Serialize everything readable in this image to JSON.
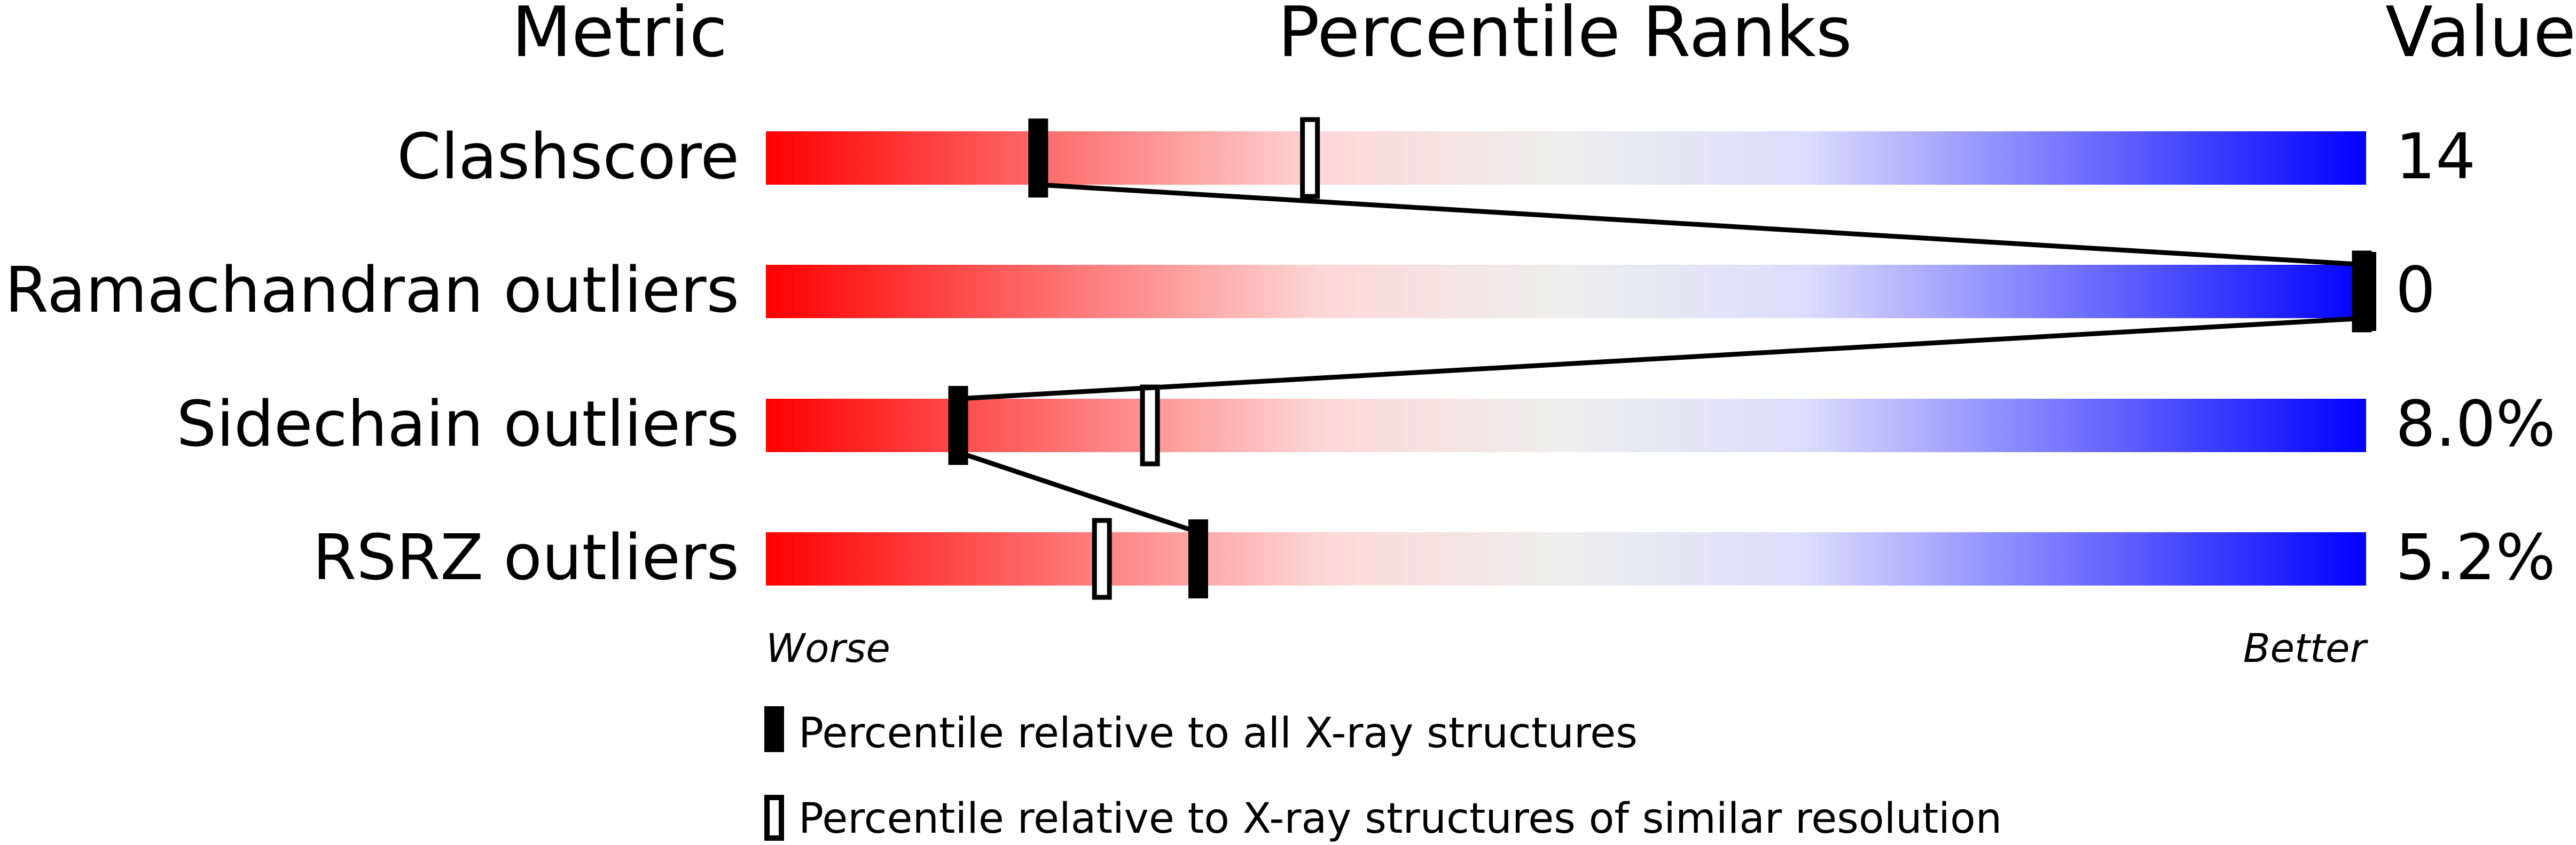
{
  "chart_data": {
    "type": "bar",
    "headers": {
      "metric": "Metric",
      "percentile": "Percentile Ranks",
      "value": "Value"
    },
    "xlim": [
      0,
      100
    ],
    "axis_labels": {
      "worse": "Worse",
      "better": "Better"
    },
    "colors": {
      "worse": "#ff0000",
      "middle": "#eeeeee",
      "better": "#0000ff",
      "marker": "#000000"
    },
    "rows": [
      {
        "metric": "Clashscore",
        "value": "14",
        "percentile_all": 17,
        "percentile_similar": 34
      },
      {
        "metric": "Ramachandran outliers",
        "value": "0",
        "percentile_all": 100,
        "percentile_similar": 100
      },
      {
        "metric": "Sidechain outliers",
        "value": "8.0%",
        "percentile_all": 12,
        "percentile_similar": 24
      },
      {
        "metric": "RSRZ outliers",
        "value": "5.2%",
        "percentile_all": 27,
        "percentile_similar": 21
      }
    ],
    "legend": [
      {
        "marker": "filled",
        "label": "Percentile relative to all X-ray structures"
      },
      {
        "marker": "open",
        "label": "Percentile relative to X-ray structures of similar resolution"
      }
    ]
  }
}
